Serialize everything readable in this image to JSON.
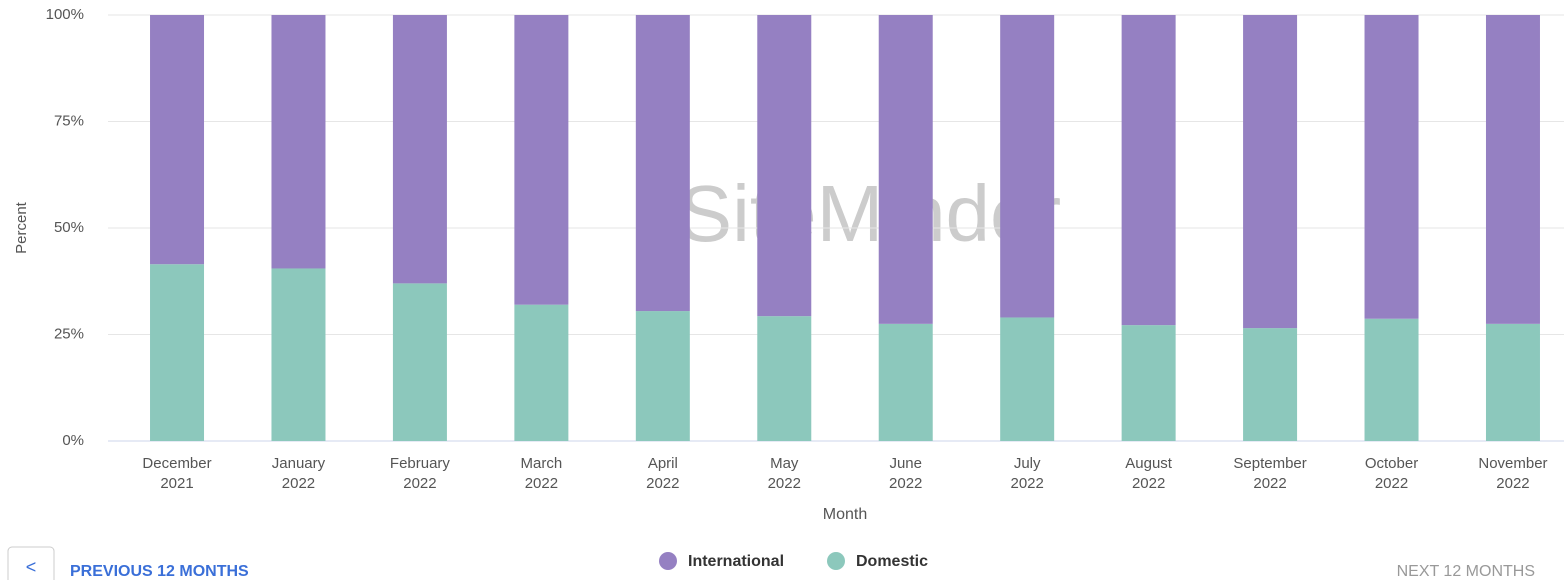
{
  "chart_data": {
    "type": "stacked_bar",
    "watermark": "SiteMinder",
    "x_label": "Month",
    "y_label": "Percent",
    "categories": [
      "December 2021",
      "January 2022",
      "February 2022",
      "March 2022",
      "April 2022",
      "May 2022",
      "June 2022",
      "July 2022",
      "August 2022",
      "September 2022",
      "October 2022",
      "November 2022"
    ],
    "series": [
      {
        "name": "International",
        "color": "#9580c2",
        "values": [
          58.5,
          59.5,
          63,
          68,
          69.5,
          70.7,
          72.5,
          71,
          72.8,
          73.5,
          71.3,
          72.5
        ]
      },
      {
        "name": "Domestic",
        "color": "#8cc8bc",
        "values": [
          41.5,
          40.5,
          37,
          32,
          30.5,
          29.3,
          27.5,
          29,
          27.2,
          26.5,
          28.7,
          27.5
        ]
      }
    ],
    "ylim": [
      0,
      100
    ],
    "yticks": [
      {
        "value": 0,
        "label": "0%"
      },
      {
        "value": 25,
        "label": "25%"
      },
      {
        "value": 50,
        "label": "50%"
      },
      {
        "value": 75,
        "label": "75%"
      },
      {
        "value": 100,
        "label": "100%"
      }
    ],
    "grid": true,
    "legend": "bottom"
  },
  "nav": {
    "previous": "PREVIOUS 12 MONTHS",
    "next": "NEXT 12 MONTHS",
    "back_icon": "<"
  }
}
